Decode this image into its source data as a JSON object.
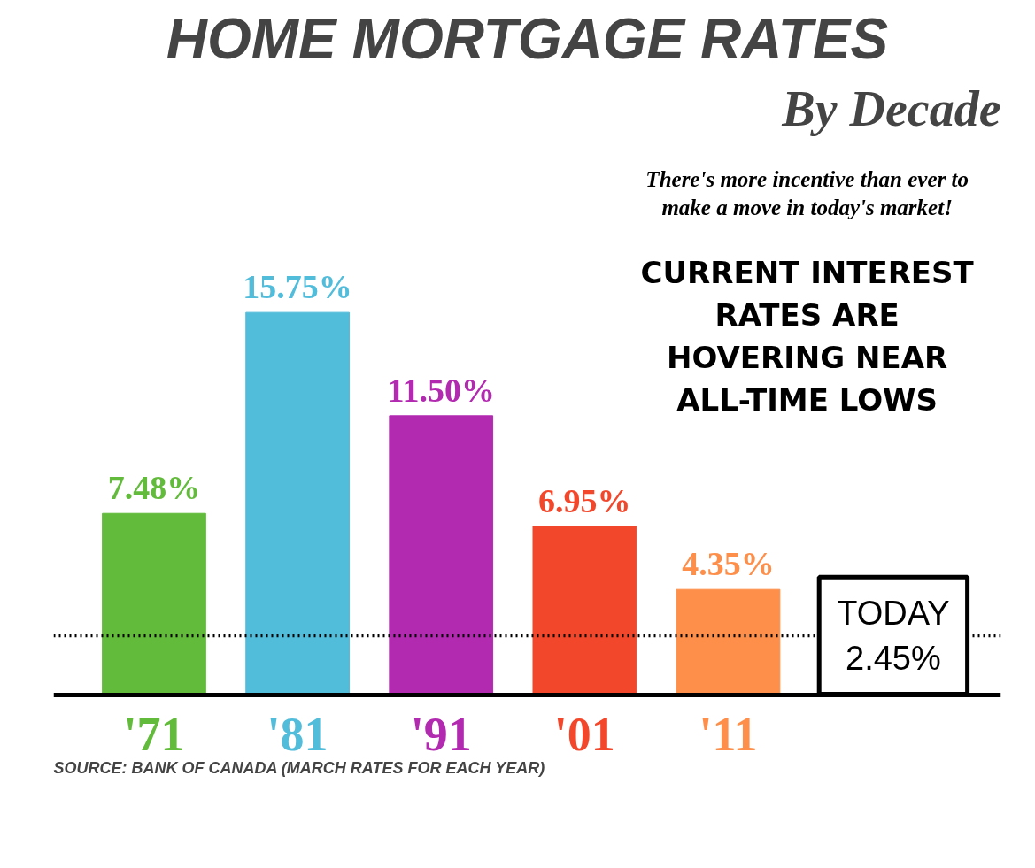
{
  "chart_data": {
    "type": "bar",
    "title": "HOME MORTGAGE RATES",
    "subtitle": "By Decade",
    "categories": [
      "'71",
      "'81",
      "'91",
      "'01",
      "'11"
    ],
    "values": [
      7.48,
      15.75,
      11.5,
      6.95,
      4.35
    ],
    "value_labels": [
      "7.48%",
      "15.75%",
      "11.50%",
      "6.95%",
      "4.35%"
    ],
    "colors": [
      "#62bb3b",
      "#52bcdb",
      "#b22ab0",
      "#f2472b",
      "#fd8f4a"
    ],
    "tick_labels": "x",
    "grid": false,
    "ref_lines": [
      {
        "axis": "y",
        "value": 2.45,
        "label": "TODAY\n2.45%",
        "line_style": "dotted",
        "color": "#000000"
      }
    ],
    "annotations": [
      "There's more incentive than ever to\nmake a move in today's market!",
      "CURRENT INTEREST\nRATES ARE\nHOVERING NEAR\nALL-TIME LOWS",
      "SOURCE: BANK OF CANADA (MARCH RATES FOR EACH YEAR)"
    ]
  }
}
